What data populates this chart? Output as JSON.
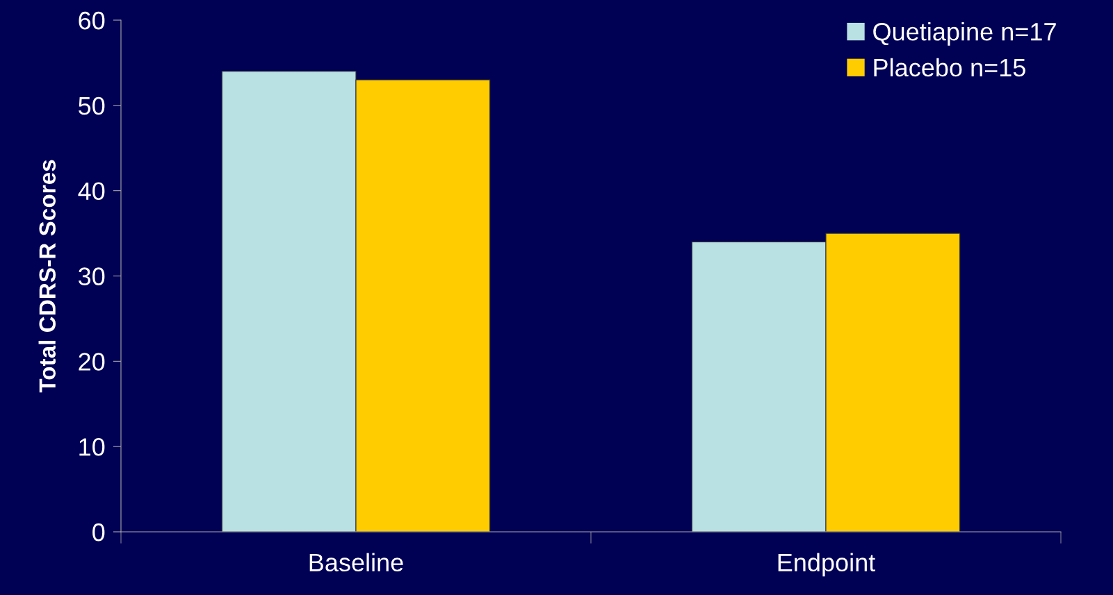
{
  "chart_data": {
    "type": "bar",
    "ylabel": "Total CDRS-R Scores",
    "categories": [
      "Baseline",
      "Endpoint"
    ],
    "series": [
      {
        "name": "Quetiapine n=17",
        "color": "#b9e0e2",
        "values": [
          54,
          34
        ]
      },
      {
        "name": "Placebo n=15",
        "color": "#ffcc00",
        "values": [
          53,
          35
        ]
      }
    ],
    "ylim": [
      0,
      60
    ],
    "yticks": [
      0,
      10,
      20,
      30,
      40,
      50,
      60
    ],
    "grid": false,
    "legend": "top right"
  }
}
